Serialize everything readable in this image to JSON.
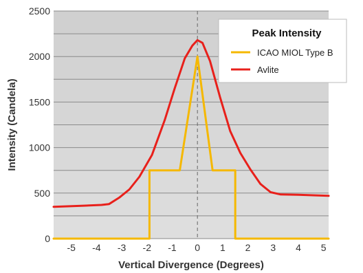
{
  "chart_data": {
    "type": "line",
    "title": "",
    "xlabel": "Vertical Divergence (Degrees)",
    "ylabel": "Intensity (Candela)",
    "xlim": [
      -5.7,
      5.2
    ],
    "ylim": [
      0,
      2500
    ],
    "x_ticks": [
      -5,
      -4,
      -3,
      -2,
      -1,
      0,
      1,
      2,
      3,
      4,
      5
    ],
    "y_ticks": [
      0,
      500,
      1000,
      1500,
      2000,
      2500
    ],
    "y_gridlines": [
      0,
      250,
      500,
      750,
      1000,
      1250,
      1500,
      1750,
      2000,
      2250,
      2500
    ],
    "grid": "horizontal",
    "reference_line": {
      "x": 0,
      "style": "dashed"
    },
    "legend": {
      "title": "Peak Intensity",
      "position": "top-right"
    },
    "series": [
      {
        "name": "ICAO MIOL Type B",
        "color": "#f5b800",
        "points": [
          [
            -5.7,
            0
          ],
          [
            -1.9,
            0
          ],
          [
            -1.9,
            750
          ],
          [
            -0.7,
            750
          ],
          [
            0,
            2000
          ],
          [
            0.6,
            750
          ],
          [
            1.5,
            750
          ],
          [
            1.5,
            0
          ],
          [
            5.2,
            0
          ]
        ]
      },
      {
        "name": "Avlite",
        "color": "#e8201b",
        "points": [
          [
            -5.7,
            350
          ],
          [
            -4.5,
            362
          ],
          [
            -3.8,
            370
          ],
          [
            -3.5,
            380
          ],
          [
            -3.1,
            450
          ],
          [
            -2.7,
            540
          ],
          [
            -2.3,
            680
          ],
          [
            -1.8,
            920
          ],
          [
            -1.3,
            1300
          ],
          [
            -0.9,
            1650
          ],
          [
            -0.5,
            1980
          ],
          [
            -0.2,
            2120
          ],
          [
            0,
            2180
          ],
          [
            0.2,
            2150
          ],
          [
            0.5,
            1950
          ],
          [
            0.9,
            1550
          ],
          [
            1.3,
            1180
          ],
          [
            1.7,
            940
          ],
          [
            2.1,
            760
          ],
          [
            2.5,
            600
          ],
          [
            2.9,
            510
          ],
          [
            3.3,
            485
          ],
          [
            4.0,
            482
          ],
          [
            5.2,
            470
          ]
        ]
      }
    ]
  }
}
